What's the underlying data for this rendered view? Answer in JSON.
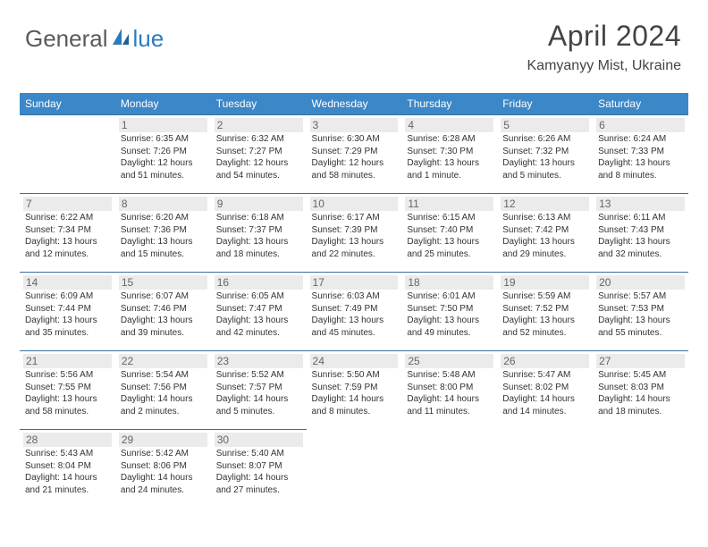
{
  "logo": {
    "part1": "General",
    "part2": "lue"
  },
  "header": {
    "title": "April 2024",
    "location": "Kamyanyy Mist, Ukraine"
  },
  "colors": {
    "header_bg": "#3b87c8",
    "header_text": "#ffffff",
    "cell_border": "#3b6fa0",
    "daynum_bg": "#ebebeb",
    "daynum_text": "#666666",
    "body_text": "#333333",
    "logo_gray": "#5a5a5a",
    "logo_blue": "#2b7bbf",
    "page_bg": "#ffffff"
  },
  "weekdays": [
    "Sunday",
    "Monday",
    "Tuesday",
    "Wednesday",
    "Thursday",
    "Friday",
    "Saturday"
  ],
  "weeks": [
    [
      null,
      {
        "n": "1",
        "sr": "Sunrise: 6:35 AM",
        "ss": "Sunset: 7:26 PM",
        "dl": "Daylight: 12 hours and 51 minutes."
      },
      {
        "n": "2",
        "sr": "Sunrise: 6:32 AM",
        "ss": "Sunset: 7:27 PM",
        "dl": "Daylight: 12 hours and 54 minutes."
      },
      {
        "n": "3",
        "sr": "Sunrise: 6:30 AM",
        "ss": "Sunset: 7:29 PM",
        "dl": "Daylight: 12 hours and 58 minutes."
      },
      {
        "n": "4",
        "sr": "Sunrise: 6:28 AM",
        "ss": "Sunset: 7:30 PM",
        "dl": "Daylight: 13 hours and 1 minute."
      },
      {
        "n": "5",
        "sr": "Sunrise: 6:26 AM",
        "ss": "Sunset: 7:32 PM",
        "dl": "Daylight: 13 hours and 5 minutes."
      },
      {
        "n": "6",
        "sr": "Sunrise: 6:24 AM",
        "ss": "Sunset: 7:33 PM",
        "dl": "Daylight: 13 hours and 8 minutes."
      }
    ],
    [
      {
        "n": "7",
        "sr": "Sunrise: 6:22 AM",
        "ss": "Sunset: 7:34 PM",
        "dl": "Daylight: 13 hours and 12 minutes."
      },
      {
        "n": "8",
        "sr": "Sunrise: 6:20 AM",
        "ss": "Sunset: 7:36 PM",
        "dl": "Daylight: 13 hours and 15 minutes."
      },
      {
        "n": "9",
        "sr": "Sunrise: 6:18 AM",
        "ss": "Sunset: 7:37 PM",
        "dl": "Daylight: 13 hours and 18 minutes."
      },
      {
        "n": "10",
        "sr": "Sunrise: 6:17 AM",
        "ss": "Sunset: 7:39 PM",
        "dl": "Daylight: 13 hours and 22 minutes."
      },
      {
        "n": "11",
        "sr": "Sunrise: 6:15 AM",
        "ss": "Sunset: 7:40 PM",
        "dl": "Daylight: 13 hours and 25 minutes."
      },
      {
        "n": "12",
        "sr": "Sunrise: 6:13 AM",
        "ss": "Sunset: 7:42 PM",
        "dl": "Daylight: 13 hours and 29 minutes."
      },
      {
        "n": "13",
        "sr": "Sunrise: 6:11 AM",
        "ss": "Sunset: 7:43 PM",
        "dl": "Daylight: 13 hours and 32 minutes."
      }
    ],
    [
      {
        "n": "14",
        "sr": "Sunrise: 6:09 AM",
        "ss": "Sunset: 7:44 PM",
        "dl": "Daylight: 13 hours and 35 minutes."
      },
      {
        "n": "15",
        "sr": "Sunrise: 6:07 AM",
        "ss": "Sunset: 7:46 PM",
        "dl": "Daylight: 13 hours and 39 minutes."
      },
      {
        "n": "16",
        "sr": "Sunrise: 6:05 AM",
        "ss": "Sunset: 7:47 PM",
        "dl": "Daylight: 13 hours and 42 minutes."
      },
      {
        "n": "17",
        "sr": "Sunrise: 6:03 AM",
        "ss": "Sunset: 7:49 PM",
        "dl": "Daylight: 13 hours and 45 minutes."
      },
      {
        "n": "18",
        "sr": "Sunrise: 6:01 AM",
        "ss": "Sunset: 7:50 PM",
        "dl": "Daylight: 13 hours and 49 minutes."
      },
      {
        "n": "19",
        "sr": "Sunrise: 5:59 AM",
        "ss": "Sunset: 7:52 PM",
        "dl": "Daylight: 13 hours and 52 minutes."
      },
      {
        "n": "20",
        "sr": "Sunrise: 5:57 AM",
        "ss": "Sunset: 7:53 PM",
        "dl": "Daylight: 13 hours and 55 minutes."
      }
    ],
    [
      {
        "n": "21",
        "sr": "Sunrise: 5:56 AM",
        "ss": "Sunset: 7:55 PM",
        "dl": "Daylight: 13 hours and 58 minutes."
      },
      {
        "n": "22",
        "sr": "Sunrise: 5:54 AM",
        "ss": "Sunset: 7:56 PM",
        "dl": "Daylight: 14 hours and 2 minutes."
      },
      {
        "n": "23",
        "sr": "Sunrise: 5:52 AM",
        "ss": "Sunset: 7:57 PM",
        "dl": "Daylight: 14 hours and 5 minutes."
      },
      {
        "n": "24",
        "sr": "Sunrise: 5:50 AM",
        "ss": "Sunset: 7:59 PM",
        "dl": "Daylight: 14 hours and 8 minutes."
      },
      {
        "n": "25",
        "sr": "Sunrise: 5:48 AM",
        "ss": "Sunset: 8:00 PM",
        "dl": "Daylight: 14 hours and 11 minutes."
      },
      {
        "n": "26",
        "sr": "Sunrise: 5:47 AM",
        "ss": "Sunset: 8:02 PM",
        "dl": "Daylight: 14 hours and 14 minutes."
      },
      {
        "n": "27",
        "sr": "Sunrise: 5:45 AM",
        "ss": "Sunset: 8:03 PM",
        "dl": "Daylight: 14 hours and 18 minutes."
      }
    ],
    [
      {
        "n": "28",
        "sr": "Sunrise: 5:43 AM",
        "ss": "Sunset: 8:04 PM",
        "dl": "Daylight: 14 hours and 21 minutes."
      },
      {
        "n": "29",
        "sr": "Sunrise: 5:42 AM",
        "ss": "Sunset: 8:06 PM",
        "dl": "Daylight: 14 hours and 24 minutes."
      },
      {
        "n": "30",
        "sr": "Sunrise: 5:40 AM",
        "ss": "Sunset: 8:07 PM",
        "dl": "Daylight: 14 hours and 27 minutes."
      },
      null,
      null,
      null,
      null
    ]
  ]
}
